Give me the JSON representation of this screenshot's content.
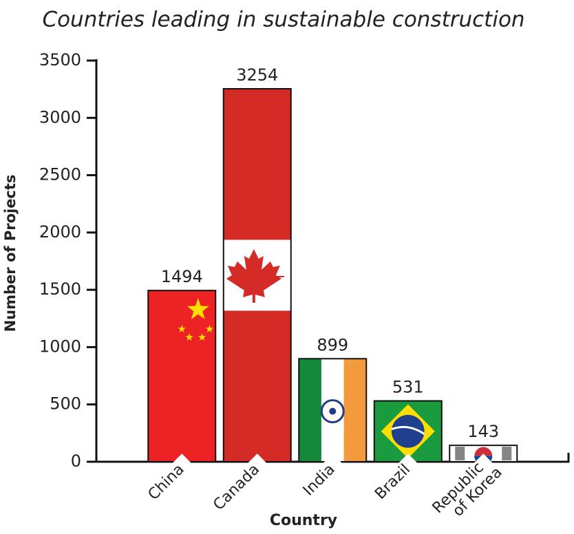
{
  "chart_data": {
    "type": "bar",
    "title": "Countries leading in sustainable construction",
    "x_label": "Country",
    "y_label": "Number of Projects",
    "categories": [
      "China",
      "Canada",
      "India",
      "Brazil",
      "Republic of Korea"
    ],
    "values": [
      1494,
      3254,
      899,
      531,
      143
    ],
    "colors": [
      "#ed2224",
      "#d52b27",
      "#ffffff",
      "#1a9c3e",
      "#ffffff"
    ],
    "ylim": [
      0,
      3500
    ],
    "yticks": [
      0,
      500,
      1000,
      1500,
      2000,
      2500,
      3000,
      3500
    ],
    "grid": false
  }
}
